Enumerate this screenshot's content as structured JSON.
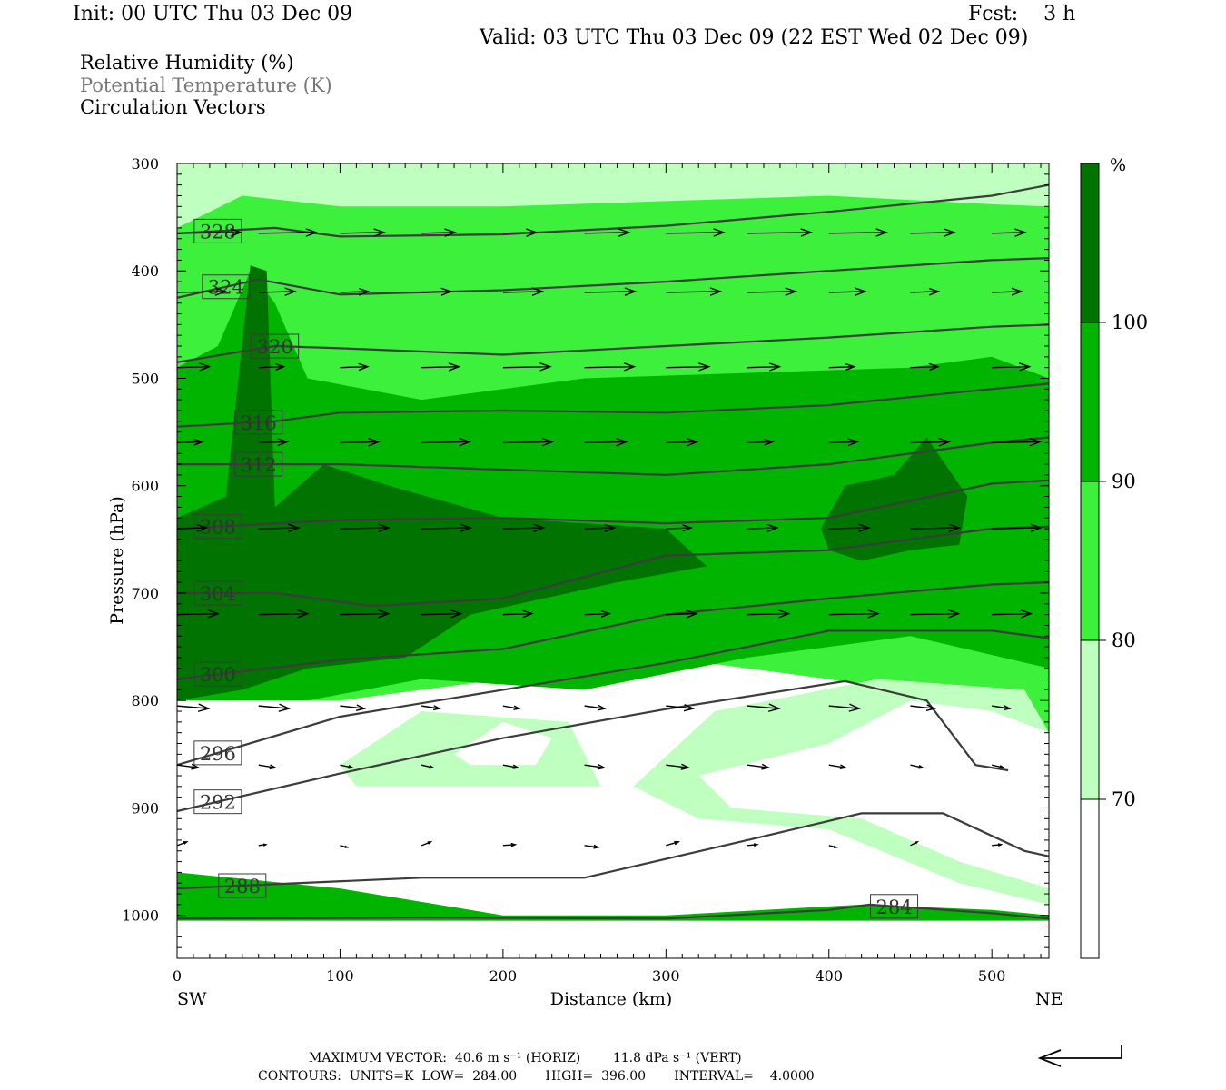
{
  "header": {
    "init": "Init: 00 UTC Thu 03 Dec 09",
    "fcst": "Fcst:    3 h",
    "valid": "Valid: 03 UTC Thu 03 Dec 09 (22 EST Wed 02 Dec 09)"
  },
  "legend": {
    "line1": "Relative Humidity (%)",
    "line2": "Potential Temperature (K)",
    "line3": "Circulation Vectors"
  },
  "footer": {
    "max_vector": "MAXIMUM VECTOR:  40.6 m s⁻¹ (HORIZ)        11.8 dPa s⁻¹ (VERT)",
    "contours": "CONTOURS:  UNITS=K  LOW=  284.00       HIGH=  396.00       INTERVAL=    4.0000"
  },
  "colors": {
    "rh_lt70": "#ffffff",
    "rh_70_80": "#bfffbf",
    "rh_80_90": "#3cf03c",
    "rh_90_100": "#00b400",
    "rh_gt100": "#007300",
    "theta_line": "#3c3c3c"
  },
  "chart_data": {
    "type": "contour",
    "xlabel": "Distance (km)",
    "ylabel": "Pressure (hPa)",
    "x_end_labels": {
      "left": "SW",
      "right": "NE"
    },
    "xlim": [
      0,
      535
    ],
    "ylim": [
      1040,
      300
    ],
    "xticks": [
      0,
      100,
      200,
      300,
      400,
      500
    ],
    "yticks": [
      300,
      400,
      500,
      600,
      700,
      800,
      900,
      1000
    ],
    "colorbar": {
      "unit": "%",
      "levels": [
        70,
        80,
        90,
        100
      ]
    },
    "theta_contours": [
      {
        "value": 328,
        "points": [
          [
            0,
            365
          ],
          [
            60,
            360
          ],
          [
            100,
            368
          ],
          [
            200,
            366
          ],
          [
            300,
            358
          ],
          [
            400,
            345
          ],
          [
            500,
            330
          ],
          [
            535,
            320
          ]
        ]
      },
      {
        "value": 324,
        "points": [
          [
            0,
            425
          ],
          [
            50,
            408
          ],
          [
            100,
            422
          ],
          [
            200,
            418
          ],
          [
            300,
            410
          ],
          [
            400,
            400
          ],
          [
            500,
            390
          ],
          [
            535,
            388
          ]
        ]
      },
      {
        "value": 320,
        "points": [
          [
            0,
            485
          ],
          [
            60,
            470
          ],
          [
            100,
            472
          ],
          [
            200,
            478
          ],
          [
            300,
            470
          ],
          [
            400,
            462
          ],
          [
            500,
            452
          ],
          [
            535,
            450
          ]
        ]
      },
      {
        "value": 316,
        "points": [
          [
            0,
            545
          ],
          [
            60,
            540
          ],
          [
            100,
            532
          ],
          [
            200,
            530
          ],
          [
            300,
            532
          ],
          [
            400,
            525
          ],
          [
            500,
            510
          ],
          [
            535,
            505
          ]
        ]
      },
      {
        "value": 312,
        "points": [
          [
            0,
            580
          ],
          [
            100,
            580
          ],
          [
            200,
            585
          ],
          [
            300,
            590
          ],
          [
            400,
            580
          ],
          [
            500,
            560
          ],
          [
            535,
            555
          ]
        ]
      },
      {
        "value": 308,
        "points": [
          [
            0,
            640
          ],
          [
            100,
            632
          ],
          [
            200,
            630
          ],
          [
            300,
            635
          ],
          [
            400,
            630
          ],
          [
            500,
            598
          ],
          [
            535,
            595
          ]
        ]
      },
      {
        "value": 304,
        "points": [
          [
            0,
            700
          ],
          [
            60,
            700
          ],
          [
            120,
            712
          ],
          [
            200,
            705
          ],
          [
            300,
            665
          ],
          [
            400,
            660
          ],
          [
            500,
            640
          ],
          [
            535,
            638
          ]
        ]
      },
      {
        "value": 300,
        "points": [
          [
            0,
            780
          ],
          [
            100,
            762
          ],
          [
            200,
            752
          ],
          [
            300,
            720
          ],
          [
            400,
            705
          ],
          [
            500,
            692
          ],
          [
            535,
            690
          ]
        ]
      },
      {
        "value": 296,
        "points": [
          [
            0,
            860
          ],
          [
            100,
            815
          ],
          [
            200,
            790
          ],
          [
            300,
            765
          ],
          [
            400,
            735
          ],
          [
            500,
            735
          ],
          [
            535,
            742
          ]
        ]
      },
      {
        "value": 292,
        "points": [
          [
            0,
            903
          ],
          [
            100,
            868
          ],
          [
            200,
            835
          ],
          [
            300,
            808
          ],
          [
            410,
            782
          ],
          [
            460,
            800
          ],
          [
            490,
            860
          ],
          [
            510,
            865
          ]
        ]
      },
      {
        "value": 288,
        "points": [
          [
            0,
            975
          ],
          [
            150,
            965
          ],
          [
            250,
            965
          ],
          [
            350,
            930
          ],
          [
            420,
            905
          ],
          [
            470,
            905
          ],
          [
            520,
            940
          ],
          [
            535,
            945
          ]
        ]
      },
      {
        "value": 284,
        "points": [
          [
            0,
            1003
          ],
          [
            150,
            1002
          ],
          [
            300,
            1003
          ],
          [
            400,
            995
          ],
          [
            425,
            990
          ],
          [
            500,
            998
          ],
          [
            535,
            1003
          ]
        ]
      }
    ],
    "vector_max": {
      "horizontal": "40.6 m s-1",
      "vertical": "11.8 dPa s-1"
    },
    "contour_info": {
      "units": "K",
      "low": 284.0,
      "high": 396.0,
      "interval": 4.0
    }
  }
}
